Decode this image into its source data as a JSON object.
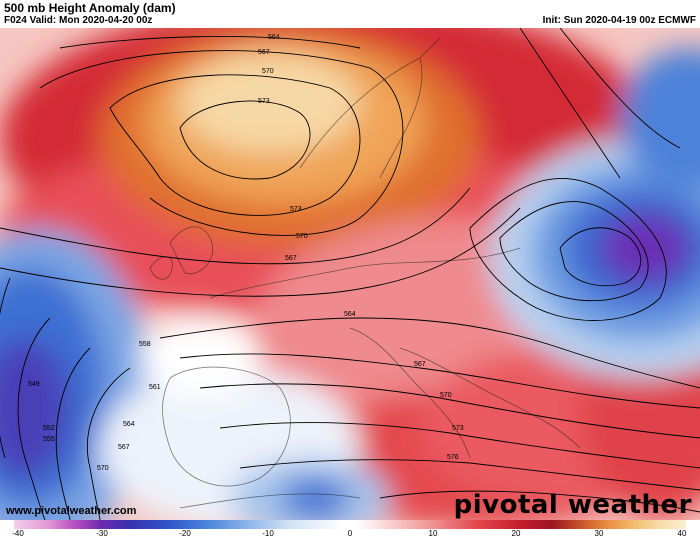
{
  "header": {
    "title": "500 mb Height Anomaly (dam)",
    "valid": "F024 Valid: Mon 2020-04-20 00z",
    "init": "Init: Sun 2020-04-19 00z ECMWF"
  },
  "map": {
    "contour_labels": [
      "564",
      "567",
      "570",
      "573",
      "573",
      "570",
      "567",
      "564",
      "567",
      "570",
      "573",
      "576",
      "558",
      "561",
      "564",
      "567",
      "570",
      "549",
      "552",
      "555"
    ],
    "colors": {
      "strong_positive": "#c0182a",
      "positive": "#e8424a",
      "weak_positive": "#f4a6a6",
      "peak_positive": "#f5e6c8",
      "neutral": "#ffffff",
      "weak_negative": "#a9c8ec",
      "negative": "#3b6fd6",
      "strong_negative": "#6f2fb8"
    }
  },
  "footer": {
    "website": "www.pivotalweather.com",
    "brand": "pivotal weather"
  },
  "colorbar": {
    "ticks": [
      "-40",
      "-30",
      "-20",
      "-10",
      "0",
      "10",
      "20",
      "30",
      "40"
    ]
  }
}
